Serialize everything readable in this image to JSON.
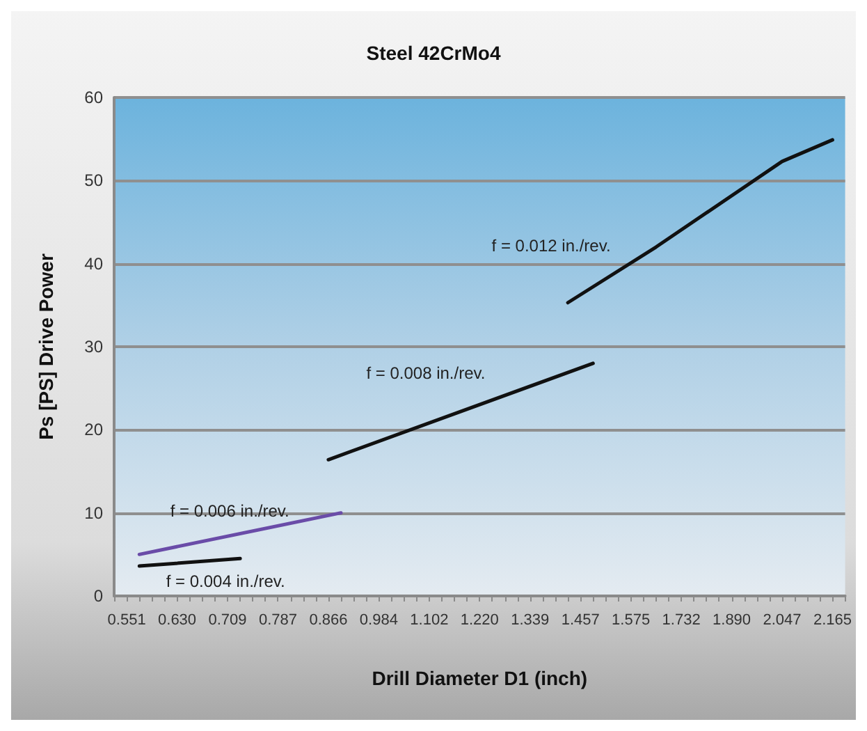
{
  "chart_data": {
    "type": "line",
    "title": "Steel 42CrMo4",
    "xlabel": "Drill Diameter D1 (inch)",
    "ylabel": "Ps [PS] Drive Power",
    "categories": [
      null,
      "0.551",
      null,
      null,
      null,
      "0.630",
      null,
      null,
      null,
      "0.709",
      null,
      null,
      null,
      "0.787",
      null,
      null,
      null,
      "0.866",
      null,
      null,
      null,
      "0.984",
      null,
      null,
      null,
      "1.102",
      null,
      null,
      null,
      "1.220",
      null,
      null,
      null,
      "1.339",
      null,
      null,
      null,
      "1.457",
      null,
      null,
      null,
      "1.575",
      null,
      null,
      null,
      "1.732",
      null,
      null,
      null,
      "1.890",
      null,
      null,
      null,
      "2.047",
      null,
      null,
      null,
      "2.165",
      null
    ],
    "series": [
      {
        "name": "f = 0.004 in./rev.",
        "color": "#111111",
        "values": [
          null,
          null,
          3.6,
          null,
          null,
          null,
          null,
          null,
          null,
          null,
          4.5,
          null,
          null,
          null,
          null,
          null,
          null,
          null,
          null,
          null,
          null,
          null,
          null,
          null,
          null,
          null,
          null,
          null,
          null,
          null,
          null,
          null,
          null,
          null,
          null,
          null,
          null,
          null,
          null,
          null,
          null,
          null,
          null,
          null,
          null,
          null,
          null,
          null,
          null,
          null,
          null,
          null,
          null,
          null,
          null,
          null,
          null,
          null,
          null
        ]
      },
      {
        "name": "f = 0.006 in./rev.",
        "color": "#6a4ca8",
        "values": [
          null,
          null,
          5.0,
          null,
          null,
          null,
          null,
          null,
          null,
          null,
          null,
          null,
          null,
          null,
          null,
          null,
          null,
          null,
          10,
          null,
          null,
          null,
          null,
          null,
          null,
          null,
          null,
          null,
          null,
          null,
          null,
          null,
          null,
          null,
          null,
          null,
          null,
          null,
          null,
          null,
          null,
          null,
          null,
          null,
          null,
          null,
          null,
          null,
          null,
          null,
          null,
          null,
          null,
          null,
          null,
          null,
          null,
          null,
          null
        ]
      },
      {
        "name": "f = 0.008 in./rev.",
        "color": "#111111",
        "values": [
          null,
          null,
          null,
          null,
          null,
          null,
          null,
          null,
          null,
          null,
          null,
          null,
          null,
          null,
          null,
          null,
          null,
          16.4,
          null,
          null,
          null,
          null,
          null,
          null,
          null,
          null,
          null,
          null,
          null,
          null,
          null,
          null,
          null,
          null,
          null,
          null,
          null,
          null,
          28.0,
          null,
          null,
          null,
          null,
          null,
          null,
          null,
          null,
          null,
          null,
          null,
          null,
          null,
          null,
          null,
          null,
          null,
          null,
          null,
          null
        ]
      },
      {
        "name": "f = 0.012 in./rev.",
        "color": "#111111",
        "values": [
          null,
          null,
          null,
          null,
          null,
          null,
          null,
          null,
          null,
          null,
          null,
          null,
          null,
          null,
          null,
          null,
          null,
          null,
          null,
          null,
          null,
          null,
          null,
          null,
          null,
          null,
          null,
          null,
          null,
          null,
          null,
          null,
          null,
          null,
          null,
          null,
          35.3,
          null,
          null,
          null,
          null,
          null,
          null,
          42.0,
          null,
          null,
          null,
          null,
          null,
          null,
          null,
          null,
          null,
          52.3,
          null,
          null,
          null,
          54.9,
          null
        ]
      }
    ],
    "ylim": [
      0,
      60
    ],
    "yticks": [
      0,
      10,
      20,
      30,
      40,
      50,
      60
    ],
    "grid": "y",
    "legend": false,
    "marker": "none",
    "line_style": "solid"
  }
}
